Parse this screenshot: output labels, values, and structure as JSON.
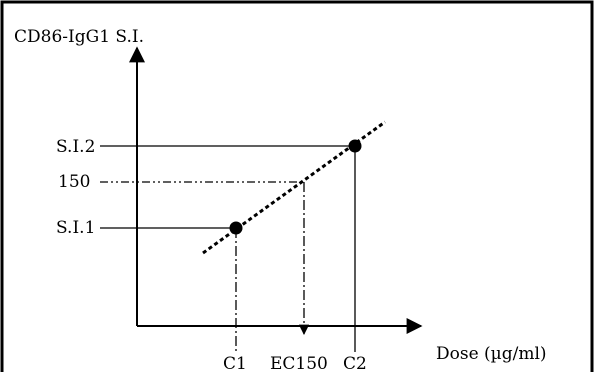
{
  "diagram": {
    "y_axis_label": "CD86-IgG1 S.I.",
    "x_axis_label": "Dose (µg/ml)",
    "y_marks": [
      "S.I.2",
      "150",
      "S.I.1"
    ],
    "x_marks": [
      "C1",
      "EC150",
      "C2"
    ],
    "points": [
      {
        "label": "S.I.1",
        "dose": "C1"
      },
      {
        "label": "S.I.2",
        "dose": "C2"
      }
    ],
    "colors": {
      "line": "#000000",
      "frame": "#000000",
      "background": "#ffffff"
    }
  }
}
